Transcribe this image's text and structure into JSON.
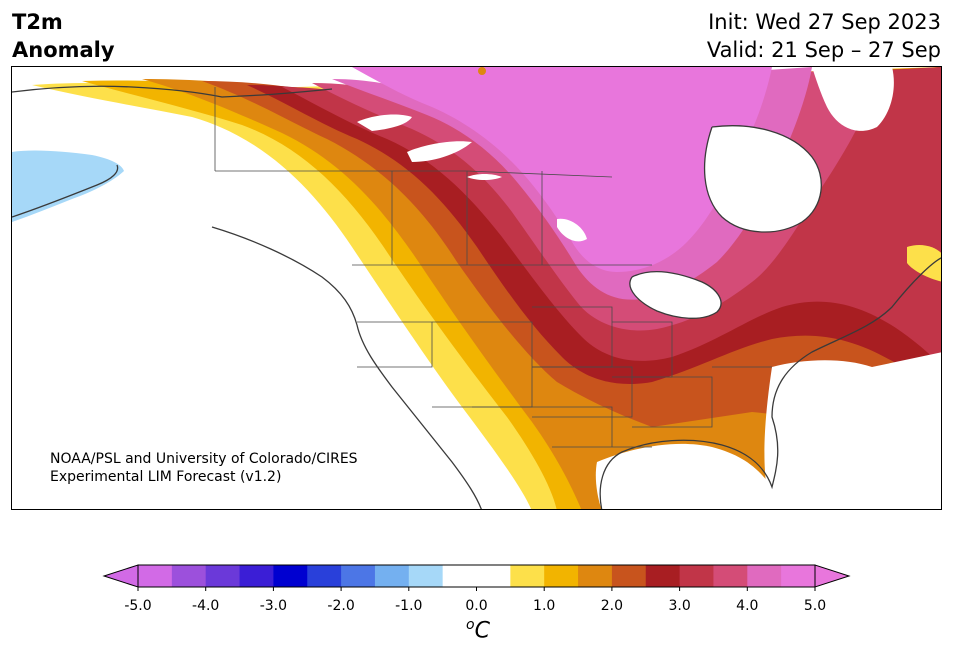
{
  "title": {
    "line1": "T2m",
    "line2": "Anomaly"
  },
  "timing": {
    "init": "Init: Wed 27 Sep 2023",
    "valid": "Valid: 21 Sep – 27 Sep"
  },
  "credit": {
    "line1": "NOAA/PSL and University of Colorado/CIRES",
    "line2": "Experimental LIM Forecast (v1.2)"
  },
  "colorbar": {
    "units_symbol": "C",
    "units_superscript": "o",
    "tick_labels": [
      "-5.0",
      "-4.0",
      "-3.0",
      "-2.0",
      "-1.0",
      "0.0",
      "1.0",
      "2.0",
      "3.0",
      "4.0",
      "5.0"
    ],
    "colors": [
      "#d26ae6",
      "#9c50dc",
      "#6b39d9",
      "#3b1ed6",
      "#0000d0",
      "#2940da",
      "#4c76e6",
      "#74b0f0",
      "#a6d8f8",
      "#ffffff",
      "#ffffff",
      "#fde04a",
      "#f2b400",
      "#de8710",
      "#c8541d",
      "#a81e22",
      "#c13548",
      "#d44c77",
      "#e06abf",
      "#e876dc"
    ],
    "extend_low_color": "#d26ae6",
    "extend_high_color": "#e876dc"
  },
  "colors": {
    "neg_light": "#a6d8f8",
    "pos_yellow": "#fde04a",
    "pos_gold": "#f2b400",
    "pos_orange": "#de8710",
    "pos_burnt": "#c8541d",
    "pos_red": "#a81e22",
    "pos_crimson": "#c13548",
    "pos_rose": "#d44c77",
    "pos_pink": "#e06abf",
    "pos_magenta": "#e876dc"
  }
}
